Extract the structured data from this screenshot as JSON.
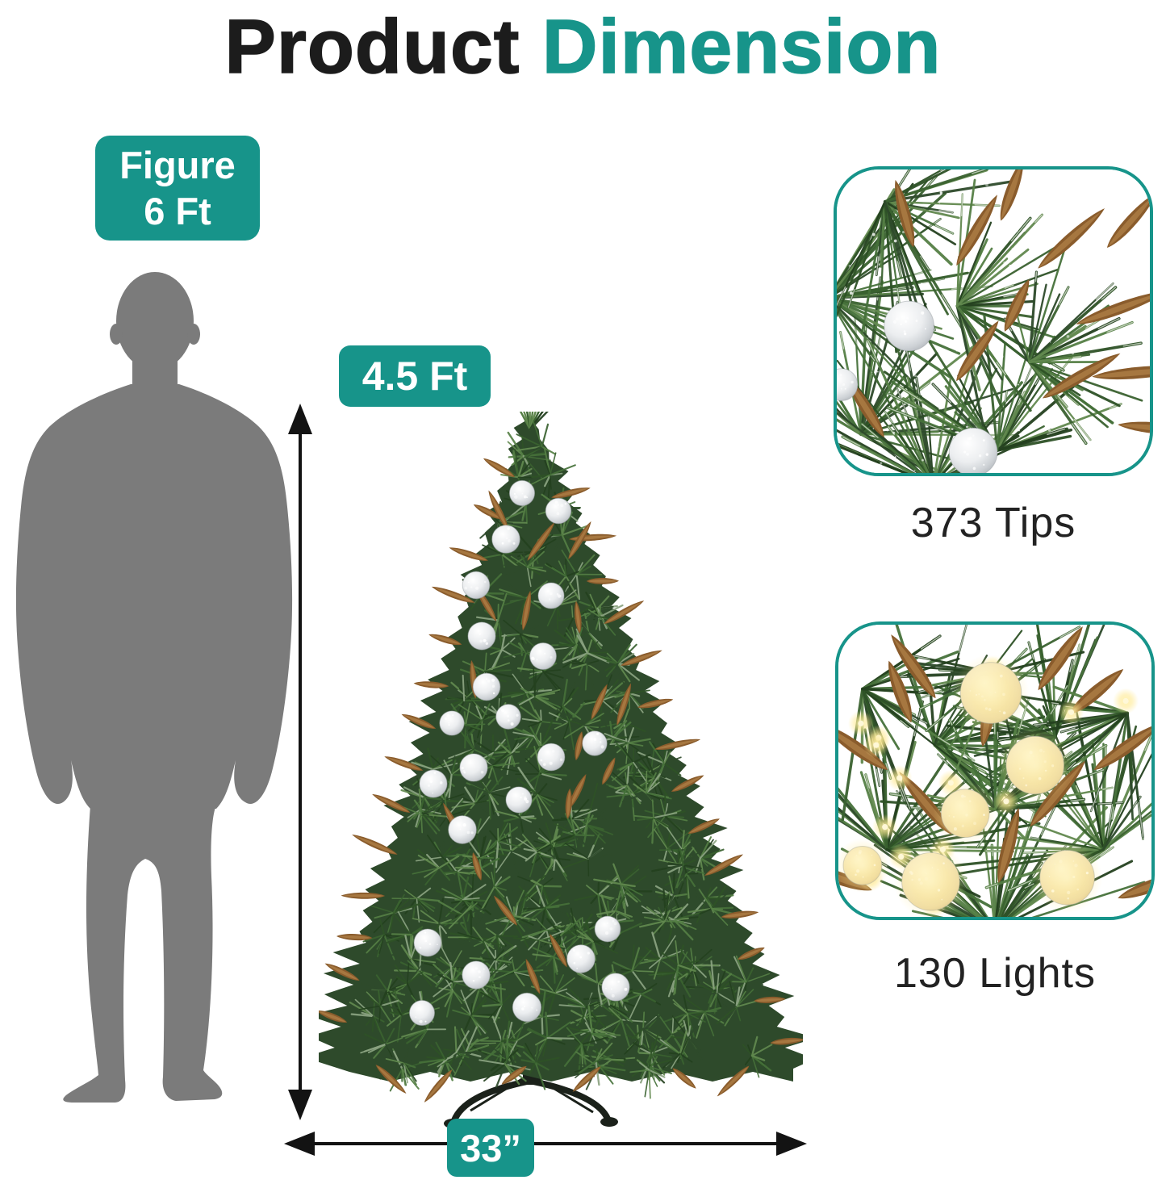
{
  "title": {
    "word_black": "Product",
    "word_teal": "Dimension"
  },
  "figure_badge": {
    "line1": "Figure",
    "line2": "6 Ft"
  },
  "dimensions": {
    "height_label": "4.5 Ft",
    "width_label": "33”"
  },
  "insets": {
    "tips": {
      "caption": "373 Tips"
    },
    "lights": {
      "caption": "130 Lights"
    }
  },
  "colors": {
    "accent_teal": "#17948A",
    "title_black": "#1C1C1C",
    "caption_dark": "#222222",
    "silhouette_gray": "#7B7B7B",
    "arrow_black": "#131313",
    "tree_green_dark": "#2E4A2B",
    "tree_green_mid": "#46713A",
    "tree_green_light": "#62894F",
    "frost_green": "#8BA381",
    "tip_brown": "#A97A42",
    "tip_brown_dark": "#8A5C2C",
    "ornament_silver": "#D9DCDE",
    "stand_black": "#1B211A",
    "warm_light": "#F6E9C2"
  }
}
